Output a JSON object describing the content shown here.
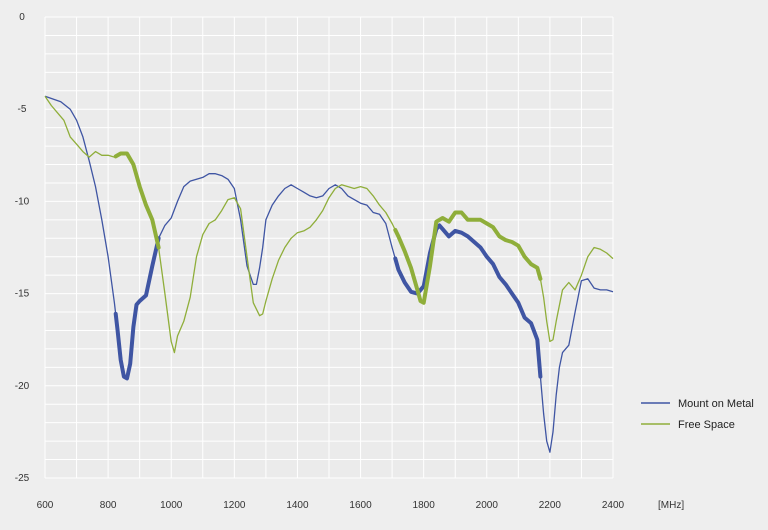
{
  "chart_data": {
    "type": "line",
    "x_unit_label": "[MHz]",
    "xlim": [
      600,
      2400
    ],
    "ylim": [
      -25,
      0
    ],
    "x_ticks": [
      600,
      800,
      1000,
      1200,
      1400,
      1600,
      1800,
      2000,
      2200,
      2400
    ],
    "y_ticks": [
      0,
      -5,
      -10,
      -15,
      -20,
      -25
    ],
    "grid": true,
    "legend_position": "right",
    "series": [
      {
        "name": "Mount on Metal",
        "color": "#3f55a3",
        "x": [
          600,
          650,
          680,
          700,
          720,
          740,
          760,
          780,
          800,
          820,
          830,
          840,
          850,
          860,
          870,
          880,
          890,
          900,
          920,
          940,
          960,
          980,
          1000,
          1020,
          1040,
          1060,
          1080,
          1100,
          1120,
          1140,
          1160,
          1180,
          1200,
          1220,
          1240,
          1260,
          1270,
          1280,
          1290,
          1300,
          1320,
          1340,
          1360,
          1380,
          1400,
          1420,
          1440,
          1460,
          1480,
          1500,
          1520,
          1540,
          1560,
          1580,
          1600,
          1620,
          1640,
          1660,
          1680,
          1700,
          1720,
          1740,
          1760,
          1780,
          1800,
          1820,
          1840,
          1850,
          1860,
          1880,
          1900,
          1920,
          1940,
          1960,
          1980,
          2000,
          2020,
          2040,
          2060,
          2080,
          2100,
          2120,
          2140,
          2160,
          2170,
          2180,
          2190,
          2200,
          2210,
          2220,
          2230,
          2240,
          2260,
          2280,
          2300,
          2320,
          2340,
          2360,
          2380,
          2400
        ],
        "values": [
          -4.3,
          -4.6,
          -5.0,
          -5.6,
          -6.5,
          -7.8,
          -9.2,
          -11.0,
          -13.0,
          -15.5,
          -17.0,
          -18.6,
          -19.5,
          -19.6,
          -18.8,
          -16.8,
          -15.6,
          -15.4,
          -15.1,
          -13.5,
          -12.0,
          -11.3,
          -10.9,
          -10.0,
          -9.2,
          -8.9,
          -8.8,
          -8.7,
          -8.5,
          -8.5,
          -8.6,
          -8.8,
          -9.3,
          -11.0,
          -13.5,
          -14.5,
          -14.5,
          -13.6,
          -12.5,
          -11.0,
          -10.2,
          -9.7,
          -9.3,
          -9.1,
          -9.3,
          -9.5,
          -9.7,
          -9.8,
          -9.7,
          -9.3,
          -9.1,
          -9.3,
          -9.7,
          -9.9,
          -10.1,
          -10.2,
          -10.6,
          -10.7,
          -11.2,
          -12.5,
          -13.7,
          -14.4,
          -14.9,
          -15.0,
          -14.6,
          -12.8,
          -11.5,
          -11.3,
          -11.5,
          -11.9,
          -11.6,
          -11.7,
          -11.9,
          -12.2,
          -12.5,
          -13.0,
          -13.4,
          -14.1,
          -14.5,
          -15.0,
          -15.5,
          -16.3,
          -16.6,
          -17.5,
          -19.5,
          -21.5,
          -23.0,
          -23.6,
          -22.5,
          -20.5,
          -19.0,
          -18.2,
          -17.8,
          -16.0,
          -14.3,
          -14.2,
          -14.7,
          -14.8,
          -14.8,
          -14.9
        ]
      },
      {
        "name": "Free Space",
        "color": "#8fae3a",
        "x": [
          600,
          620,
          640,
          660,
          680,
          700,
          720,
          740,
          760,
          780,
          800,
          820,
          840,
          860,
          880,
          900,
          920,
          940,
          960,
          980,
          1000,
          1010,
          1020,
          1040,
          1060,
          1080,
          1100,
          1120,
          1140,
          1160,
          1180,
          1200,
          1220,
          1240,
          1260,
          1280,
          1290,
          1300,
          1320,
          1340,
          1360,
          1380,
          1400,
          1420,
          1440,
          1460,
          1480,
          1500,
          1520,
          1540,
          1560,
          1580,
          1600,
          1620,
          1640,
          1660,
          1680,
          1700,
          1720,
          1740,
          1760,
          1780,
          1790,
          1800,
          1820,
          1840,
          1860,
          1880,
          1900,
          1920,
          1940,
          1960,
          1980,
          2000,
          2020,
          2040,
          2060,
          2080,
          2100,
          2120,
          2140,
          2160,
          2170,
          2180,
          2190,
          2200,
          2210,
          2220,
          2240,
          2260,
          2280,
          2300,
          2320,
          2340,
          2360,
          2380,
          2400
        ],
        "values": [
          -4.3,
          -4.8,
          -5.2,
          -5.6,
          -6.5,
          -6.9,
          -7.3,
          -7.6,
          -7.3,
          -7.5,
          -7.5,
          -7.6,
          -7.4,
          -7.4,
          -8.0,
          -9.2,
          -10.2,
          -11.0,
          -12.5,
          -15.0,
          -17.6,
          -18.2,
          -17.3,
          -16.5,
          -15.2,
          -13.0,
          -11.8,
          -11.2,
          -11.0,
          -10.5,
          -9.9,
          -9.8,
          -10.4,
          -13.0,
          -15.5,
          -16.2,
          -16.1,
          -15.4,
          -14.2,
          -13.2,
          -12.5,
          -12.0,
          -11.7,
          -11.6,
          -11.4,
          -11.0,
          -10.5,
          -9.8,
          -9.3,
          -9.1,
          -9.2,
          -9.3,
          -9.2,
          -9.3,
          -9.7,
          -10.2,
          -10.6,
          -11.2,
          -11.9,
          -12.7,
          -13.6,
          -14.8,
          -15.4,
          -15.5,
          -13.5,
          -11.1,
          -10.9,
          -11.1,
          -10.6,
          -10.6,
          -11.0,
          -11.0,
          -11.0,
          -11.2,
          -11.4,
          -11.9,
          -12.1,
          -12.2,
          -12.4,
          -13.0,
          -13.4,
          -13.6,
          -14.2,
          -15.2,
          -16.5,
          -17.6,
          -17.5,
          -16.5,
          -14.8,
          -14.4,
          -14.8,
          -14.0,
          -13.0,
          -12.5,
          -12.6,
          -12.8,
          -13.1
        ]
      }
    ],
    "emphasis_ranges_mhz": [
      [
        824,
        960
      ],
      [
        1710,
        2170
      ]
    ]
  }
}
